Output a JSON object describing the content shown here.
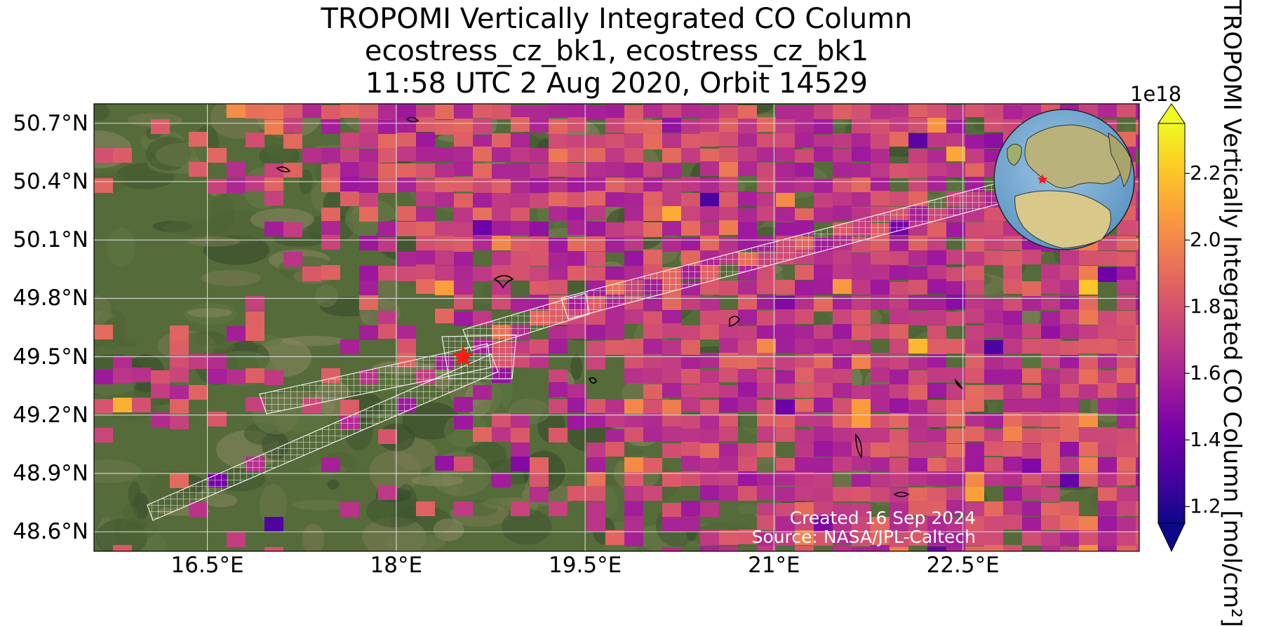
{
  "title": {
    "line1": "TROPOMI Vertically Integrated CO Column",
    "line2": "ecostress_cz_bk1, ecostress_cz_bk1",
    "line3": "11:58 UTC 2 Aug 2020, Orbit 14529"
  },
  "map": {
    "lon_range": [
      15.6,
      23.9
    ],
    "lat_range": [
      48.5,
      50.8
    ],
    "lat_ticks": [
      {
        "value": 50.7,
        "label": "50.7°N"
      },
      {
        "value": 50.4,
        "label": "50.4°N"
      },
      {
        "value": 50.1,
        "label": "50.1°N"
      },
      {
        "value": 49.8,
        "label": "49.8°N"
      },
      {
        "value": 49.5,
        "label": "49.5°N"
      },
      {
        "value": 49.2,
        "label": "49.2°N"
      },
      {
        "value": 48.9,
        "label": "48.9°N"
      },
      {
        "value": 48.6,
        "label": "48.6°N"
      }
    ],
    "lon_ticks": [
      {
        "value": 16.5,
        "label": "16.5°E"
      },
      {
        "value": 18.0,
        "label": "18°E"
      },
      {
        "value": 19.5,
        "label": "19.5°E"
      },
      {
        "value": 21.0,
        "label": "21°E"
      },
      {
        "value": 22.5,
        "label": "22.5°E"
      }
    ],
    "target_marker": {
      "lon": 18.53,
      "lat": 49.5,
      "symbol": "red-star"
    },
    "basemap": "satellite imagery",
    "gridlines": true,
    "inset_globe": {
      "position": "top-right",
      "marker": "red-star"
    }
  },
  "credits": {
    "created": "Created 16 Sep 2024",
    "source": "Source: NASA/JPL-Caltech"
  },
  "colorbar": {
    "label": "TROPOMI Vertically Integrated CO Column [mol/cm²]",
    "exponent": "1e18",
    "range": [
      1.15,
      2.35
    ],
    "extend": "both",
    "colormap": "plasma",
    "ticks": [
      {
        "value": 2.2,
        "label": "2.2"
      },
      {
        "value": 2.0,
        "label": "2.0"
      },
      {
        "value": 1.8,
        "label": "1.8"
      },
      {
        "value": 1.6,
        "label": "1.6"
      },
      {
        "value": 1.4,
        "label": "1.4"
      },
      {
        "value": 1.2,
        "label": "1.2"
      }
    ]
  },
  "colors": {
    "plasma": [
      "#0d0887",
      "#46039f",
      "#7201a8",
      "#9c179e",
      "#bd3786",
      "#d8576b",
      "#ed7953",
      "#fb9f3a",
      "#fdca26",
      "#f0f921"
    ],
    "star": "#ff1a1a",
    "footprint": "#ffffff"
  }
}
